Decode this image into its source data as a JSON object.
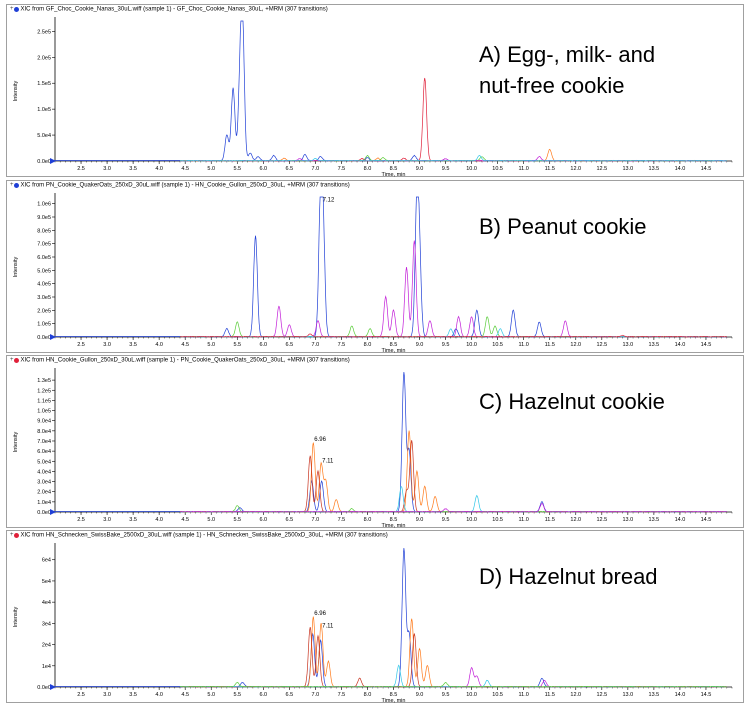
{
  "colors": {
    "blue": "#1f3fd6",
    "magenta": "#c21ed8",
    "red": "#e0203a",
    "orange": "#ff7a1a",
    "darkred": "#c8321e",
    "green": "#5acd3a",
    "cyan": "#2fc6e8",
    "navy": "#3030a0"
  },
  "x_ticks": [
    "2.5",
    "3.0",
    "3.5",
    "4.0",
    "4.5",
    "5.0",
    "5.5",
    "6.0",
    "6.5",
    "7.0",
    "7.5",
    "8.0",
    "8.5",
    "9.0",
    "9.5",
    "10.0",
    "10.5",
    "11.0",
    "11.5",
    "12.0",
    "12.5",
    "13.0",
    "13.5",
    "14.0",
    "14.5"
  ],
  "xlabel": "Time, min",
  "ylabel": "Intensity",
  "chart_data": [
    {
      "type": "line",
      "header": "XIC from GF_Choc_Cookie_Nanas_30uL.wiff (sample 1) - GF_Choc_Cookie_Nanas_30uL, +MRM (307 transitions)",
      "header_icon_color": "#1f3fd6",
      "label_lines": [
        "A) Egg-, milk- and",
        "nut-free cookie"
      ],
      "xlabel": "Time, min",
      "ylabel": "Intensity",
      "xlim": [
        2.0,
        15.0
      ],
      "ylim": [
        0,
        270000.0
      ],
      "y_ticks": [
        "0.0e0",
        "5.0e4",
        "1.0e5",
        "1.5e5",
        "2.0e5",
        "2.5e5"
      ],
      "y_tick_values": [
        0,
        50000,
        100000,
        150000,
        200000,
        250000
      ],
      "peak_labels": [],
      "series": [
        {
          "color": "#1f3fd6",
          "peaks": [
            [
              5.3,
              50000
            ],
            [
              5.42,
              140000
            ],
            [
              5.55,
              120000
            ],
            [
              5.6,
              265000
            ],
            [
              5.75,
              15000
            ],
            [
              5.9,
              8000
            ],
            [
              6.2,
              10000
            ],
            [
              6.8,
              12000
            ],
            [
              7.1,
              8000
            ],
            [
              8.0,
              6000
            ],
            [
              8.9,
              10000
            ]
          ]
        },
        {
          "color": "#e0203a",
          "peaks": [
            [
              9.1,
              160000
            ],
            [
              8.7,
              5000
            ],
            [
              7.9,
              4000
            ]
          ]
        },
        {
          "color": "#ff7a1a",
          "peaks": [
            [
              11.5,
              22000
            ],
            [
              6.4,
              5000
            ],
            [
              8.2,
              5000
            ]
          ]
        },
        {
          "color": "#5acd3a",
          "peaks": [
            [
              8.0,
              10000
            ],
            [
              8.3,
              6000
            ],
            [
              10.2,
              8000
            ]
          ]
        },
        {
          "color": "#c21ed8",
          "peaks": [
            [
              11.3,
              8000
            ],
            [
              9.5,
              4000
            ],
            [
              6.7,
              4000
            ]
          ]
        },
        {
          "color": "#2fc6e8",
          "peaks": [
            [
              10.15,
              10000
            ],
            [
              7.0,
              4000
            ]
          ]
        }
      ]
    },
    {
      "type": "line",
      "header": "XIC from PN_Cookie_QuakerOats_250xD_30uL.wiff (sample 1) - HN_Cookie_Gullon_250xD_30uL, +MRM (307 transitions)",
      "header_icon_color": "#1f3fd6",
      "label_lines": [
        "B) Peanut cookie"
      ],
      "xlabel": "Time, min",
      "ylabel": "Intensity",
      "xlim": [
        2.0,
        15.0
      ],
      "ylim": [
        0,
        1050000.0
      ],
      "y_ticks": [
        "0.0e0",
        "1.0e5",
        "2.0e5",
        "3.0e5",
        "4.0e5",
        "5.0e5",
        "6.0e5",
        "7.0e5",
        "8.0e5",
        "9.0e5",
        "1.0e6"
      ],
      "y_tick_values": [
        0,
        100000,
        200000,
        300000,
        400000,
        500000,
        600000,
        700000,
        800000,
        900000,
        1000000
      ],
      "peak_labels": [
        {
          "text": "7.12",
          "x": 7.12,
          "y": 1000000
        }
      ],
      "series": [
        {
          "color": "#1f3fd6",
          "peaks": [
            [
              5.85,
              760000
            ],
            [
              7.1,
              1000000
            ],
            [
              7.15,
              700000
            ],
            [
              8.95,
              1000000
            ],
            [
              9.0,
              500000
            ],
            [
              10.1,
              200000
            ],
            [
              10.8,
              200000
            ],
            [
              11.3,
              110000
            ],
            [
              5.3,
              60000
            ],
            [
              9.7,
              60000
            ]
          ]
        },
        {
          "color": "#c21ed8",
          "peaks": [
            [
              6.3,
              230000
            ],
            [
              6.5,
              90000
            ],
            [
              7.05,
              120000
            ],
            [
              8.35,
              300000
            ],
            [
              8.5,
              200000
            ],
            [
              8.75,
              520000
            ],
            [
              8.9,
              720000
            ],
            [
              9.2,
              120000
            ],
            [
              9.75,
              150000
            ],
            [
              10.0,
              150000
            ],
            [
              11.8,
              120000
            ]
          ]
        },
        {
          "color": "#5acd3a",
          "peaks": [
            [
              5.5,
              110000
            ],
            [
              7.7,
              80000
            ],
            [
              8.05,
              60000
            ],
            [
              10.3,
              150000
            ],
            [
              10.45,
              80000
            ]
          ]
        },
        {
          "color": "#2fc6e8",
          "peaks": [
            [
              9.6,
              60000
            ],
            [
              10.55,
              60000
            ]
          ]
        },
        {
          "color": "#e0203a",
          "peaks": [
            [
              12.9,
              10000
            ],
            [
              6.9,
              20000
            ]
          ]
        }
      ]
    },
    {
      "type": "line",
      "header": "XIC from HN_Cookie_Gullon_250xD_30uL.wiff (sample 1) - PN_Cookie_QuakerOats_250xD_30uL, +MRM (307 transitions)",
      "header_icon_color": "#e0203a",
      "label_lines": [
        "C) Hazelnut cookie"
      ],
      "xlabel": "Time, min",
      "ylabel": "Intensity",
      "xlim": [
        2.0,
        15.0
      ],
      "ylim": [
        0,
        138000.0
      ],
      "y_ticks": [
        "0.0e0",
        "1.0e4",
        "2.0e4",
        "3.0e4",
        "4.0e4",
        "5.0e4",
        "6.0e4",
        "7.0e4",
        "8.0e4",
        "9.0e4",
        "1.0e5",
        "1.1e5",
        "1.2e5",
        "1.3e5"
      ],
      "y_tick_values": [
        0,
        10000,
        20000,
        30000,
        40000,
        50000,
        60000,
        70000,
        80000,
        90000,
        100000,
        110000,
        120000,
        130000
      ],
      "peak_labels": [
        {
          "text": "6.96",
          "x": 6.96,
          "y": 68000
        },
        {
          "text": "7.11",
          "x": 7.11,
          "y": 47000
        }
      ],
      "series": [
        {
          "color": "#1f3fd6",
          "peaks": [
            [
              6.93,
              30000
            ],
            [
              7.12,
              30000
            ],
            [
              8.7,
              137000
            ],
            [
              8.8,
              60000
            ],
            [
              11.35,
              10000
            ],
            [
              5.55,
              4000
            ]
          ]
        },
        {
          "color": "#ff7a1a",
          "peaks": [
            [
              6.96,
              68000
            ],
            [
              7.11,
              47000
            ],
            [
              7.2,
              30000
            ],
            [
              7.4,
              12000
            ],
            [
              8.8,
              80000
            ],
            [
              8.95,
              40000
            ],
            [
              9.1,
              25000
            ],
            [
              9.3,
              15000
            ]
          ]
        },
        {
          "color": "#c8321e",
          "peaks": [
            [
              6.9,
              55000
            ],
            [
              7.05,
              40000
            ],
            [
              8.85,
              70000
            ],
            [
              8.75,
              20000
            ]
          ]
        },
        {
          "color": "#2fc6e8",
          "peaks": [
            [
              10.1,
              16000
            ],
            [
              8.65,
              25000
            ]
          ]
        },
        {
          "color": "#5acd3a",
          "peaks": [
            [
              5.5,
              6000
            ],
            [
              7.7,
              3000
            ]
          ]
        },
        {
          "color": "#c21ed8",
          "peaks": [
            [
              11.35,
              8000
            ],
            [
              9.5,
              3000
            ]
          ]
        }
      ]
    },
    {
      "type": "line",
      "header": "XIC from HN_Schnecken_SwissBake_2500xD_30uL.wiff (sample 1) - HN_Schnecken_SwissBake_2500xD_30uL, +MRM (307 transitions)",
      "header_icon_color": "#e0203a",
      "label_lines": [
        "D) Hazelnut bread"
      ],
      "xlabel": "Time, min",
      "ylabel": "Intensity",
      "xlim": [
        2.0,
        15.0
      ],
      "ylim": [
        0,
        66000.0
      ],
      "y_ticks": [
        "0.0e0",
        "1e4",
        "2e4",
        "3e4",
        "4e4",
        "5e4",
        "6e4"
      ],
      "y_tick_values": [
        0,
        10000,
        20000,
        30000,
        40000,
        50000,
        60000
      ],
      "peak_labels": [
        {
          "text": "6.96",
          "x": 6.96,
          "y": 33000
        },
        {
          "text": "7.11",
          "x": 7.11,
          "y": 27000
        }
      ],
      "series": [
        {
          "color": "#1f3fd6",
          "peaks": [
            [
              6.95,
              25000
            ],
            [
              7.1,
              22000
            ],
            [
              8.7,
              65000
            ],
            [
              8.8,
              25000
            ],
            [
              11.35,
              4000
            ],
            [
              5.6,
              2000
            ]
          ]
        },
        {
          "color": "#ff7a1a",
          "peaks": [
            [
              6.96,
              33000
            ],
            [
              7.11,
              30000
            ],
            [
              7.25,
              12000
            ],
            [
              8.85,
              32000
            ],
            [
              9.0,
              18000
            ],
            [
              9.15,
              10000
            ]
          ]
        },
        {
          "color": "#c8321e",
          "peaks": [
            [
              6.9,
              28000
            ],
            [
              7.05,
              24000
            ],
            [
              8.9,
              25000
            ],
            [
              7.85,
              4000
            ]
          ]
        },
        {
          "color": "#c21ed8",
          "peaks": [
            [
              10.0,
              9000
            ],
            [
              10.1,
              5000
            ],
            [
              11.4,
              3000
            ]
          ]
        },
        {
          "color": "#2fc6e8",
          "peaks": [
            [
              8.6,
              10000
            ],
            [
              10.3,
              3000
            ]
          ]
        },
        {
          "color": "#5acd3a",
          "peaks": [
            [
              5.5,
              2000
            ],
            [
              9.5,
              2000
            ]
          ]
        }
      ]
    }
  ]
}
